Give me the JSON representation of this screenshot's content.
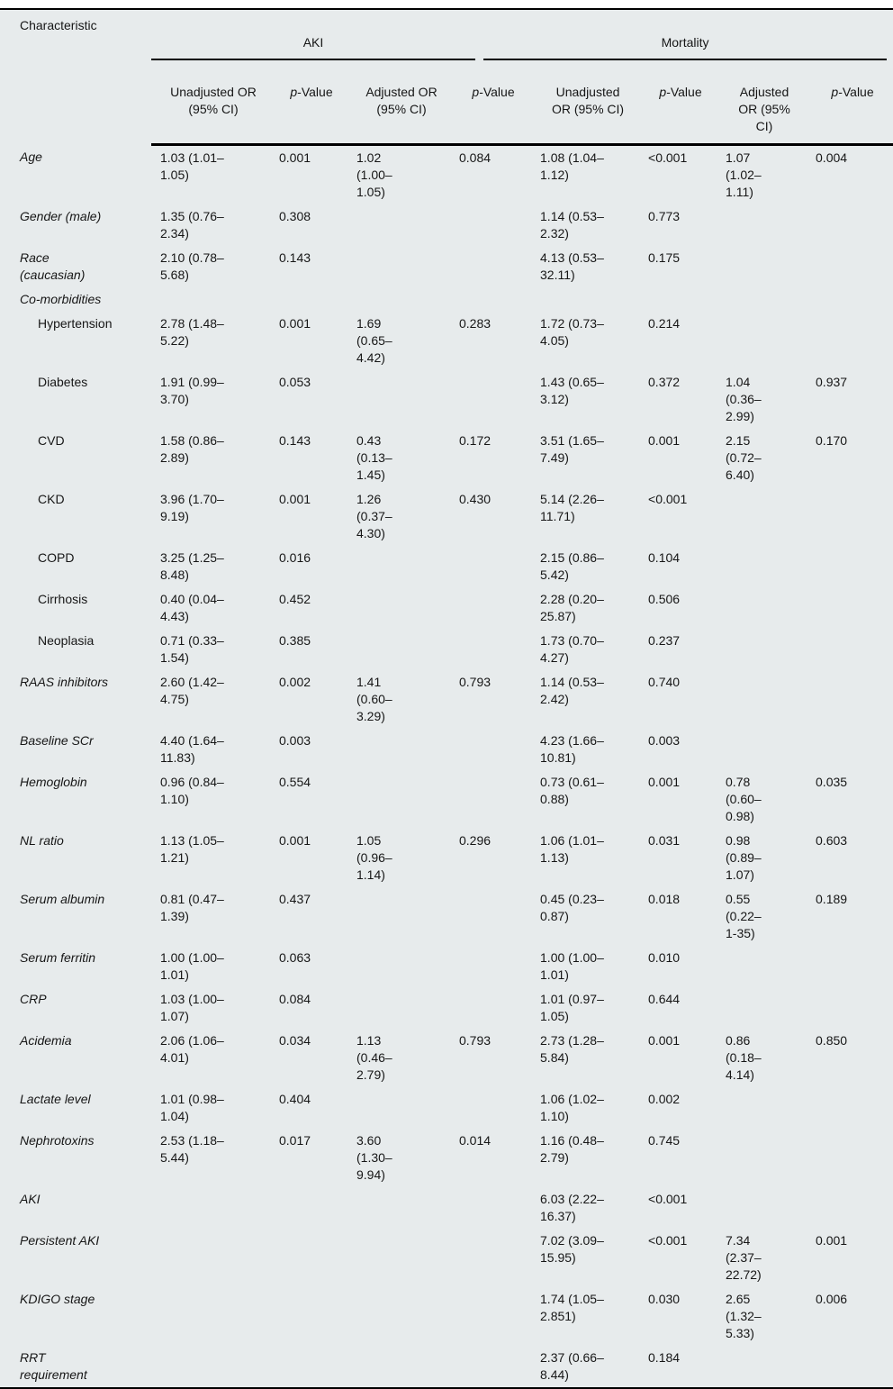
{
  "colors": {
    "table_background": "#e7ebec",
    "rule_color": "#000000",
    "text_color": "#161616"
  },
  "table": {
    "characteristic_header": "Characteristic",
    "groups": [
      {
        "label": "AKI"
      },
      {
        "label": "Mortality"
      }
    ],
    "sub_headers": [
      "Unadjusted OR\n(95% CI)",
      "p-Value",
      "Adjusted OR\n(95% CI)",
      "p-Value",
      "Unadjusted\nOR (95% CI)",
      "p-Value",
      "Adjusted\nOR (95%\nCI)",
      "p-Value"
    ],
    "rows": [
      {
        "label": "Age",
        "indent": false,
        "cells": [
          "1.03 (1.01–\n1.05)",
          "0.001",
          "1.02\n(1.00–\n1.05)",
          "0.084",
          "1.08 (1.04–\n1.12)",
          "<0.001",
          "1.07\n(1.02–\n1.11)",
          "0.004"
        ]
      },
      {
        "label": "Gender (male)",
        "indent": false,
        "cells": [
          "1.35 (0.76–\n2.34)",
          "0.308",
          "",
          "",
          "1.14 (0.53–\n2.32)",
          "0.773",
          "",
          ""
        ]
      },
      {
        "label": "Race\n(caucasian)",
        "indent": false,
        "cells": [
          "2.10 (0.78–\n5.68)",
          "0.143",
          "",
          "",
          "4.13 (0.53–\n32.11)",
          "0.175",
          "",
          ""
        ]
      },
      {
        "label": "Co-morbidities",
        "indent": false,
        "cells": [
          "",
          "",
          "",
          "",
          "",
          "",
          "",
          ""
        ]
      },
      {
        "label": "Hypertension",
        "indent": true,
        "cells": [
          "2.78 (1.48–\n5.22)",
          "0.001",
          "1.69\n(0.65–\n4.42)",
          "0.283",
          "1.72 (0.73–\n4.05)",
          "0.214",
          "",
          ""
        ]
      },
      {
        "label": "Diabetes",
        "indent": true,
        "cells": [
          "1.91 (0.99–\n3.70)",
          "0.053",
          "",
          "",
          "1.43 (0.65–\n3.12)",
          "0.372",
          "1.04\n(0.36–\n2.99)",
          "0.937"
        ]
      },
      {
        "label": "CVD",
        "indent": true,
        "cells": [
          "1.58 (0.86–\n2.89)",
          "0.143",
          "0.43\n(0.13–\n1.45)",
          "0.172",
          "3.51 (1.65–\n7.49)",
          "0.001",
          "2.15\n(0.72–\n6.40)",
          "0.170"
        ]
      },
      {
        "label": "CKD",
        "indent": true,
        "cells": [
          "3.96 (1.70–\n9.19)",
          "0.001",
          "1.26\n(0.37–\n4.30)",
          "0.430",
          "5.14 (2.26–\n11.71)",
          "<0.001",
          "",
          ""
        ]
      },
      {
        "label": "COPD",
        "indent": true,
        "cells": [
          "3.25 (1.25–\n8.48)",
          "0.016",
          "",
          "",
          "2.15 (0.86–\n5.42)",
          "0.104",
          "",
          ""
        ]
      },
      {
        "label": "Cirrhosis",
        "indent": true,
        "cells": [
          "0.40 (0.04–\n4.43)",
          "0.452",
          "",
          "",
          "2.28 (0.20–\n25.87)",
          "0.506",
          "",
          ""
        ]
      },
      {
        "label": "Neoplasia",
        "indent": true,
        "cells": [
          "0.71 (0.33–\n1.54)",
          "0.385",
          "",
          "",
          "1.73 (0.70–\n4.27)",
          "0.237",
          "",
          ""
        ]
      },
      {
        "label": "RAAS inhibitors",
        "indent": false,
        "cells": [
          "2.60 (1.42–\n4.75)",
          "0.002",
          "1.41\n(0.60–\n3.29)",
          "0.793",
          "1.14 (0.53–\n2.42)",
          "0.740",
          "",
          ""
        ]
      },
      {
        "label": "Baseline SCr",
        "indent": false,
        "cells": [
          "4.40 (1.64–\n11.83)",
          "0.003",
          "",
          "",
          "4.23 (1.66–\n10.81)",
          "0.003",
          "",
          ""
        ]
      },
      {
        "label": "Hemoglobin",
        "indent": false,
        "cells": [
          "0.96 (0.84–\n1.10)",
          "0.554",
          "",
          "",
          "0.73 (0.61–\n0.88)",
          "0.001",
          "0.78\n(0.60–\n0.98)",
          "0.035"
        ]
      },
      {
        "label": "NL ratio",
        "indent": false,
        "cells": [
          "1.13 (1.05–\n1.21)",
          "0.001",
          "1.05\n(0.96–\n1.14)",
          "0.296",
          "1.06 (1.01–\n1.13)",
          "0.031",
          "0.98\n(0.89–\n1.07)",
          "0.603"
        ]
      },
      {
        "label": "Serum albumin",
        "indent": false,
        "cells": [
          "0.81 (0.47–\n1.39)",
          "0.437",
          "",
          "",
          "0.45 (0.23–\n0.87)",
          "0.018",
          "0.55\n(0.22–\n1-35)",
          "0.189"
        ]
      },
      {
        "label": "Serum ferritin",
        "indent": false,
        "cells": [
          "1.00 (1.00–\n1.01)",
          "0.063",
          "",
          "",
          "1.00 (1.00–\n1.01)",
          "0.010",
          "",
          ""
        ]
      },
      {
        "label": "CRP",
        "indent": false,
        "cells": [
          "1.03 (1.00–\n1.07)",
          "0.084",
          "",
          "",
          "1.01 (0.97–\n1.05)",
          "0.644",
          "",
          ""
        ]
      },
      {
        "label": "Acidemia",
        "indent": false,
        "cells": [
          "2.06 (1.06–\n4.01)",
          "0.034",
          "1.13\n(0.46–\n2.79)",
          "0.793",
          "2.73 (1.28–\n5.84)",
          "0.001",
          "0.86\n(0.18–\n4.14)",
          "0.850"
        ]
      },
      {
        "label": "Lactate level",
        "indent": false,
        "cells": [
          "1.01 (0.98–\n1.04)",
          "0.404",
          "",
          "",
          "1.06 (1.02–\n1.10)",
          "0.002",
          "",
          ""
        ]
      },
      {
        "label": "Nephrotoxins",
        "indent": false,
        "cells": [
          "2.53 (1.18–\n5.44)",
          "0.017",
          "3.60\n(1.30–\n9.94)",
          "0.014",
          "1.16 (0.48–\n2.79)",
          "0.745",
          "",
          ""
        ]
      },
      {
        "label": "AKI",
        "indent": false,
        "cells": [
          "",
          "",
          "",
          "",
          "6.03 (2.22–\n16.37)",
          "<0.001",
          "",
          ""
        ]
      },
      {
        "label": "Persistent AKI",
        "indent": false,
        "cells": [
          "",
          "",
          "",
          "",
          "7.02 (3.09–\n15.95)",
          "<0.001",
          "7.34\n(2.37–\n22.72)",
          "0.001"
        ]
      },
      {
        "label": "KDIGO stage",
        "indent": false,
        "cells": [
          "",
          "",
          "",
          "",
          "1.74 (1.05–\n2.851)",
          "0.030",
          "2.65\n(1.32–\n5.33)",
          "0.006"
        ]
      },
      {
        "label": "RRT\nrequirement",
        "indent": false,
        "cells": [
          "",
          "",
          "",
          "",
          "2.37 (0.66–\n8.44)",
          "0.184",
          "",
          ""
        ]
      }
    ]
  }
}
